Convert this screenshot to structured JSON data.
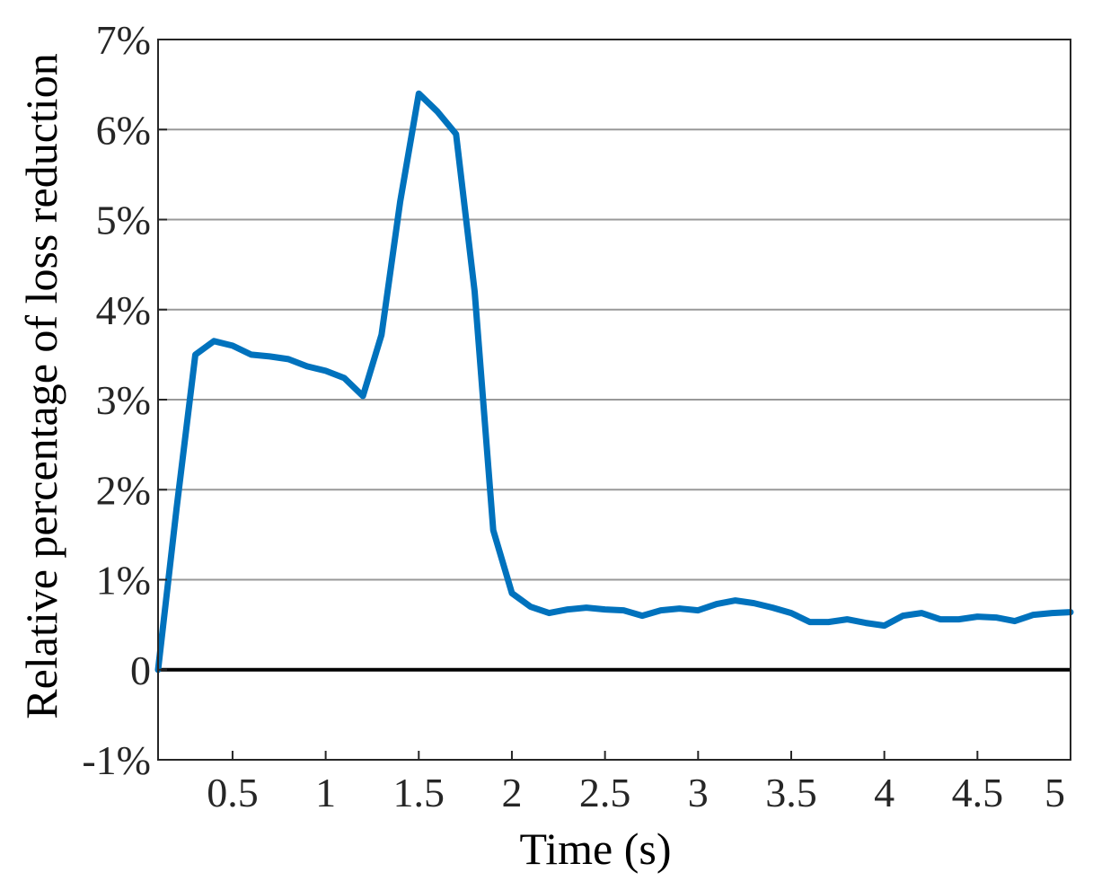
{
  "chart_data": {
    "type": "line",
    "title": "",
    "xlabel": "Time (s)",
    "ylabel": "Relative percentage of loss reduction",
    "xlim": [
      0.1,
      5
    ],
    "ylim": [
      -0.01,
      0.07
    ],
    "x_ticks": [
      0.5,
      1,
      1.5,
      2,
      2.5,
      3,
      3.5,
      4,
      4.5,
      5
    ],
    "x_tick_labels": [
      "0.5",
      "1",
      "1.5",
      "2",
      "2.5",
      "3",
      "3.5",
      "4",
      "4.5",
      "5"
    ],
    "y_ticks": [
      -0.01,
      0,
      0.01,
      0.02,
      0.03,
      0.04,
      0.05,
      0.06,
      0.07
    ],
    "y_tick_labels": [
      "-1%",
      "0",
      "1%",
      "2%",
      "3%",
      "4%",
      "5%",
      "6%",
      "7%"
    ],
    "grid": "horizontal",
    "legend": "none",
    "line_color": "#0072bd",
    "grid_color": "#999999",
    "zero_line_color": "#000000",
    "series": [
      {
        "x": [
          0.1,
          0.2,
          0.3,
          0.4,
          0.5,
          0.6,
          0.7,
          0.8,
          0.9,
          1.0,
          1.1,
          1.2,
          1.3,
          1.4,
          1.5,
          1.6,
          1.7,
          1.8,
          1.9,
          2.0,
          2.1,
          2.2,
          2.3,
          2.4,
          2.5,
          2.6,
          2.7,
          2.8,
          2.9,
          3.0,
          3.1,
          3.2,
          3.3,
          3.4,
          3.5,
          3.6,
          3.7,
          3.8,
          3.9,
          4.0,
          4.1,
          4.2,
          4.3,
          4.4,
          4.5,
          4.6,
          4.7,
          4.8,
          4.9,
          5.0
        ],
        "y": [
          0.0,
          0.018,
          0.035,
          0.0365,
          0.036,
          0.035,
          0.0348,
          0.0345,
          0.0337,
          0.0332,
          0.0324,
          0.0304,
          0.0372,
          0.052,
          0.064,
          0.062,
          0.0595,
          0.042,
          0.0155,
          0.0085,
          0.007,
          0.0063,
          0.0067,
          0.0069,
          0.0067,
          0.0066,
          0.006,
          0.0066,
          0.0068,
          0.0066,
          0.0073,
          0.0077,
          0.0074,
          0.0069,
          0.0063,
          0.0053,
          0.0053,
          0.0056,
          0.0052,
          0.0049,
          0.006,
          0.0063,
          0.0056,
          0.0056,
          0.0059,
          0.0058,
          0.0054,
          0.0061,
          0.0063,
          0.0064
        ]
      }
    ]
  }
}
